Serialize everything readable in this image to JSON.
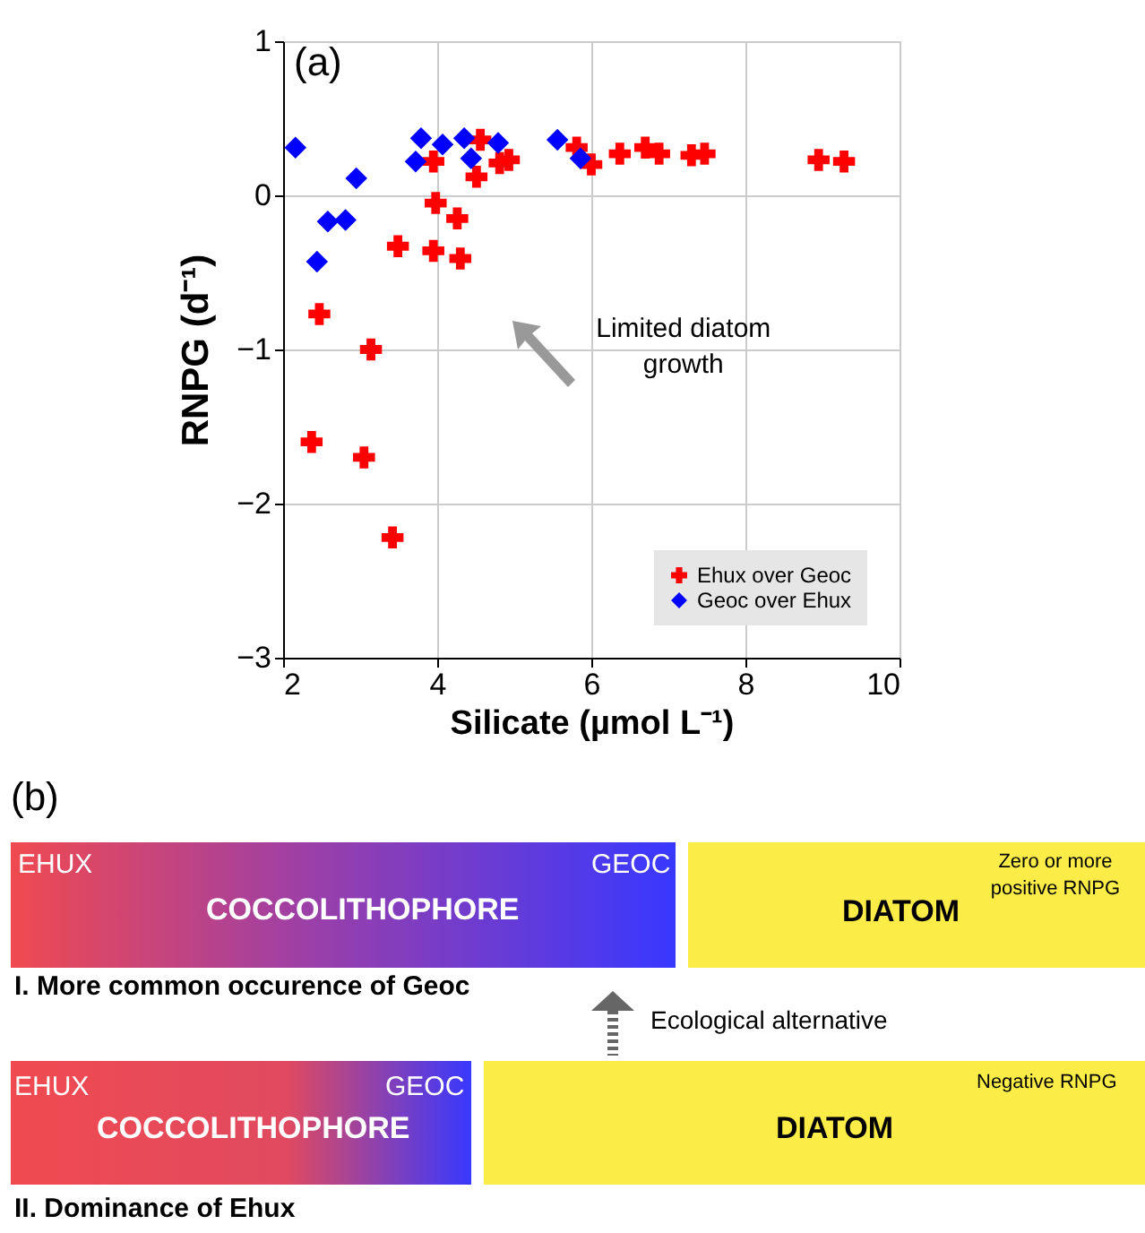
{
  "chart_data": [
    {
      "type": "scatter",
      "xlabel": "Silicate (µmol L⁻¹)",
      "ylabel": "RNPG (d⁻¹)",
      "xlim": [
        2,
        10
      ],
      "ylim": [
        -3,
        1
      ],
      "xticks": [
        2,
        4,
        6,
        8,
        10
      ],
      "yticks": [
        -3,
        -2,
        -1,
        0,
        1
      ],
      "grid": true,
      "legend": "bottom right",
      "annotations": [
        "(a)",
        "Limited diatom growth"
      ],
      "series": [
        {
          "name": "Ehux over Geoc",
          "color": "#ff0000",
          "marker": "cross",
          "x": [
            3.95,
            3.98,
            3.49,
            3.95,
            4.26,
            4.3,
            4.56,
            4.51,
            4.81,
            4.93,
            5.81,
            6.0,
            6.37,
            6.7,
            6.88,
            7.3,
            7.47,
            8.95,
            9.28,
            2.47,
            3.14,
            2.37,
            3.05,
            3.42
          ],
          "values": [
            0.22,
            -0.05,
            -0.33,
            -0.36,
            -0.15,
            -0.41,
            0.36,
            0.12,
            0.21,
            0.23,
            0.31,
            0.2,
            0.27,
            0.31,
            0.27,
            0.26,
            0.27,
            0.23,
            0.22,
            -0.77,
            -1.0,
            -1.6,
            -1.7,
            -2.22
          ]
        },
        {
          "name": "Geoc over Ehux",
          "color": "#0000ff",
          "marker": "diamond",
          "x": [
            2.16,
            2.44,
            2.58,
            2.81,
            2.95,
            3.79,
            3.72,
            4.07,
            4.35,
            4.44,
            4.79,
            5.56,
            5.86
          ],
          "values": [
            0.31,
            -0.43,
            -0.17,
            -0.16,
            0.11,
            0.37,
            0.22,
            0.33,
            0.37,
            0.24,
            0.34,
            0.36,
            0.24
          ]
        }
      ]
    },
    {
      "type": "other",
      "title": "(b)",
      "annotations": [
        "EHUX",
        "GEOC",
        "COCCOLITHOPHORE",
        "Zero or more positive RNPG",
        "DIATOM",
        "I. More common occurence of Geoc",
        "Ecological alternative",
        "EHUX",
        "GEOC",
        "COCCOLITHOPHORE",
        "Negative RNPG",
        "DIATOM",
        "II. Dominance of Ehux"
      ]
    }
  ]
}
